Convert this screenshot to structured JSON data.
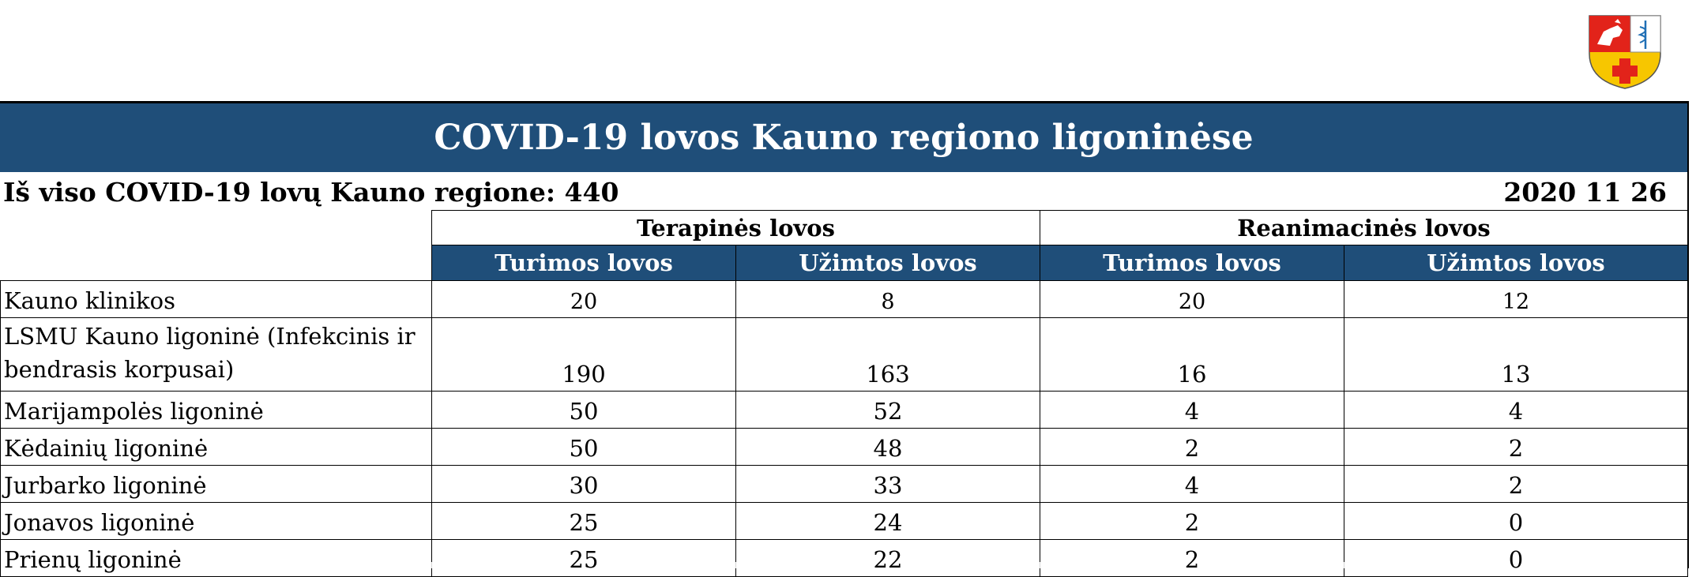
{
  "header": {
    "title": "COVID-19 lovos Kauno regiono ligoninėse",
    "total_label": "Iš viso COVID-19 lovų Kauno regione: 440",
    "date": "2020 11 26"
  },
  "logo": {
    "icon": "coat-of-arms-icon",
    "colors": {
      "red": "#e2231a",
      "yellow": "#f7c600",
      "white": "#ffffff"
    }
  },
  "table": {
    "groups": [
      "Terapinės lovos",
      "Reanimacinės lovos"
    ],
    "subheaders": [
      "Turimos lovos",
      "Užimtos lovos",
      "Turimos lovos",
      "Užimtos lovos"
    ],
    "rows": [
      {
        "name": "Kauno klinikos",
        "values": [
          "20",
          "8",
          "20",
          "12"
        ]
      },
      {
        "name": "LSMU Kauno ligoninė (Infekcinis ir bendrasis korpusai)",
        "values": [
          "190",
          "163",
          "16",
          "13"
        ]
      },
      {
        "name": "Marijampolės ligoninė",
        "values": [
          "50",
          "52",
          "4",
          "4"
        ]
      },
      {
        "name": "Kėdainių ligoninė",
        "values": [
          "50",
          "48",
          "2",
          "2"
        ]
      },
      {
        "name": "Jurbarko ligoninė",
        "values": [
          "30",
          "33",
          "4",
          "2"
        ]
      },
      {
        "name": "Jonavos ligoninė",
        "values": [
          "25",
          "24",
          "2",
          "0"
        ]
      },
      {
        "name": "Prienų ligoninė",
        "values": [
          "25",
          "22",
          "2",
          "0"
        ]
      }
    ]
  },
  "colors": {
    "header_bg": "#1f4e79",
    "header_text": "#ffffff"
  }
}
